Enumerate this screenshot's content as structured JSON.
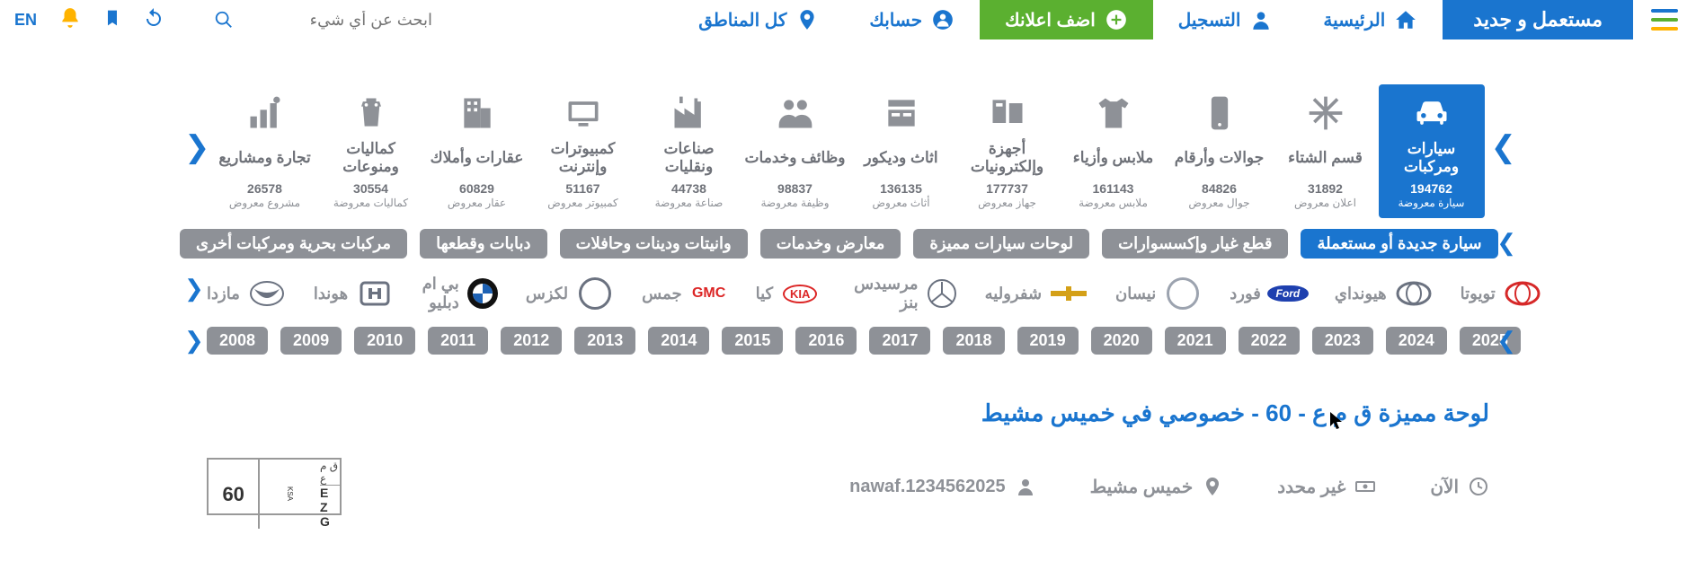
{
  "nav": {
    "lang": "EN",
    "search_placeholder": "ابحث عن أي شيء",
    "regions": "كل المناطق",
    "account": "حسابك",
    "post_ad": "اضف اعلانك",
    "register": "التسجيل",
    "home": "الرئيسية",
    "logo": "مستعمل و جديد"
  },
  "categories": [
    {
      "key": "cars",
      "title": "سيارات ومركبات",
      "count": "194762",
      "unit": "سيارة معروضة",
      "active": true
    },
    {
      "key": "winter",
      "title": "قسم الشتاء",
      "count": "31892",
      "unit": "اعلان معروض"
    },
    {
      "key": "phones",
      "title": "جوالات وأرقام",
      "count": "84826",
      "unit": "جوال معروض"
    },
    {
      "key": "clothes",
      "title": "ملابس وأزياء",
      "count": "161143",
      "unit": "ملابس معروضة"
    },
    {
      "key": "elec",
      "title": "أجهزة وإلكترونيات",
      "count": "177737",
      "unit": "جهاز معروض"
    },
    {
      "key": "furn",
      "title": "اثاث وديكور",
      "count": "136135",
      "unit": "أثاث معروض"
    },
    {
      "key": "jobs",
      "title": "وظائف وخدمات",
      "count": "98837",
      "unit": "وظيفة معروضة"
    },
    {
      "key": "indus",
      "title": "صناعات ونقليات",
      "count": "44738",
      "unit": "صناعة معروضة"
    },
    {
      "key": "comp",
      "title": "كمبيوترات وإنترنت",
      "count": "51167",
      "unit": "كمبيوتر معروض"
    },
    {
      "key": "estate",
      "title": "عقارات وأملاك",
      "count": "60829",
      "unit": "عقار معروض"
    },
    {
      "key": "accs",
      "title": "كماليات ومنوعات",
      "count": "30554",
      "unit": "كماليات معروضة"
    },
    {
      "key": "biz",
      "title": "تجارة ومشاريع",
      "count": "26578",
      "unit": "مشروع معروض"
    }
  ],
  "subcats": [
    {
      "label": "سيارة جديدة أو مستعملة",
      "active": true
    },
    {
      "label": "قطع غيار وإكسسوارات"
    },
    {
      "label": "لوحات سيارات مميزة"
    },
    {
      "label": "معارض وخدمات"
    },
    {
      "label": "وانيتات ودينات وحافلات"
    },
    {
      "label": "دبابات وقطعها"
    },
    {
      "label": "مركبات بحرية ومركبات أخرى"
    }
  ],
  "brands": [
    {
      "name": "تويوتا",
      "logo_color": "#d62828",
      "shape": "ellipse"
    },
    {
      "name": "هيونداي",
      "logo_color": "#6b7280",
      "shape": "ellipse"
    },
    {
      "name": "فورد",
      "logo_color": "#1e40af",
      "shape": "oval",
      "text": "Ford",
      "text_color": "#ffffff"
    },
    {
      "name": "نيسان",
      "logo_color": "#9ca3af",
      "shape": "circle"
    },
    {
      "name": "شفروليه",
      "logo_color": "#d4a017",
      "shape": "plus"
    },
    {
      "name": "مرسيدس بنز",
      "logo_color": "#6b7280",
      "shape": "star"
    },
    {
      "name": "كيا",
      "logo_color": "#dc2626",
      "shape": "oval",
      "text": "KIA",
      "text_color": "#dc2626",
      "outline": true
    },
    {
      "name": "جمس",
      "logo_color": "#dc2626",
      "shape": "text",
      "text": "GMC"
    },
    {
      "name": "لكزس",
      "logo_color": "#6b7280",
      "shape": "circle"
    },
    {
      "name": "بي ام دبليو",
      "logo_color": "#1e40af",
      "shape": "bmw"
    },
    {
      "name": "هوندا",
      "logo_color": "#6b7280",
      "shape": "square"
    },
    {
      "name": "مازدا",
      "logo_color": "#6b7280",
      "shape": "wing"
    }
  ],
  "years": [
    "2025",
    "2024",
    "2023",
    "2022",
    "2021",
    "2020",
    "2019",
    "2018",
    "2017",
    "2016",
    "2015",
    "2014",
    "2013",
    "2012",
    "2011",
    "2010",
    "2009",
    "2008"
  ],
  "listing": {
    "title": "لوحة مميزة ق م ع - 60 - خصوصي في خميس مشيط",
    "time": "الآن",
    "price": "غير محدد",
    "location": "خميس مشيط",
    "user": "nawaf.1234562025",
    "plate_number": "60",
    "plate_ar": "ق م ع",
    "plate_en": "E Z G",
    "plate_ksa": "KSA"
  }
}
